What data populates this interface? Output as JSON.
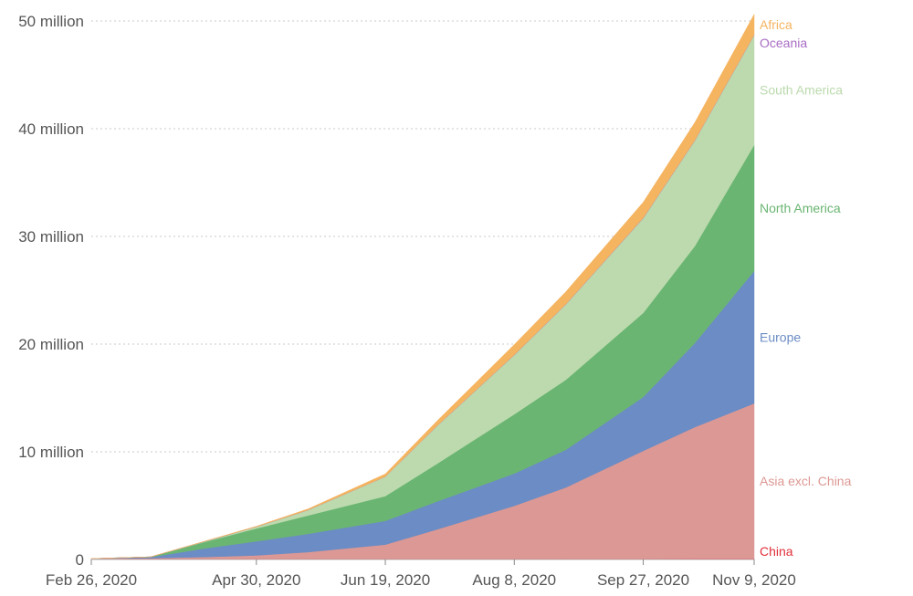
{
  "chart_data": {
    "type": "area",
    "stacked": true,
    "x": [
      "2020-02-26",
      "2020-03-20",
      "2020-04-10",
      "2020-04-30",
      "2020-05-20",
      "2020-06-19",
      "2020-07-09",
      "2020-08-08",
      "2020-08-28",
      "2020-09-27",
      "2020-10-17",
      "2020-11-09"
    ],
    "x_tick_labels": [
      "Feb 26, 2020",
      "Apr 30, 2020",
      "Jun 19, 2020",
      "Aug 8, 2020",
      "Sep 27, 2020",
      "Nov 9, 2020"
    ],
    "x_tick_dates": [
      "2020-02-26",
      "2020-04-30",
      "2020-06-19",
      "2020-08-08",
      "2020-09-27",
      "2020-11-09"
    ],
    "y_tick_labels": [
      "0",
      "10 million",
      "20 million",
      "30 million",
      "40 million",
      "50 million"
    ],
    "y_tick_values": [
      0,
      10000000,
      20000000,
      30000000,
      40000000,
      50000000
    ],
    "ylim": [
      0,
      50000000
    ],
    "grid": "horizontal dotted",
    "title": "",
    "xlabel": "",
    "ylabel": "",
    "series": [
      {
        "name": "China",
        "color": "#e0303a",
        "values": [
          78000,
          81000,
          82000,
          83000,
          84000,
          84500,
          85000,
          86000,
          87000,
          88000,
          89000,
          90000
        ]
      },
      {
        "name": "Asia excl. China",
        "color": "#dc9894",
        "values": [
          3000,
          40000,
          150000,
          300000,
          600000,
          1300000,
          2700000,
          4900000,
          6600000,
          10000000,
          12200000,
          14400000
        ]
      },
      {
        "name": "Europe",
        "color": "#6b8cc4",
        "values": [
          2000,
          100000,
          800000,
          1300000,
          1700000,
          2200000,
          2600000,
          3000000,
          3500000,
          5000000,
          7800000,
          12300000
        ]
      },
      {
        "name": "North America",
        "color": "#6bb572",
        "values": [
          100,
          20000,
          600000,
          1200000,
          1700000,
          2300000,
          3500000,
          5500000,
          6500000,
          7800000,
          9000000,
          11700000
        ]
      },
      {
        "name": "South America",
        "color": "#bcdaae",
        "values": [
          0,
          1000,
          50000,
          150000,
          500000,
          1800000,
          3500000,
          5500000,
          7000000,
          8800000,
          9800000,
          10200000
        ]
      },
      {
        "name": "Oceania",
        "color": "#a86cc4",
        "values": [
          0,
          1000,
          7000,
          8000,
          8500,
          9000,
          11000,
          23000,
          28000,
          30000,
          31000,
          32000
        ]
      },
      {
        "name": "Africa",
        "color": "#f5b460",
        "values": [
          0,
          1000,
          15000,
          45000,
          100000,
          250000,
          450000,
          950000,
          1150000,
          1450000,
          1650000,
          1900000
        ]
      }
    ]
  }
}
